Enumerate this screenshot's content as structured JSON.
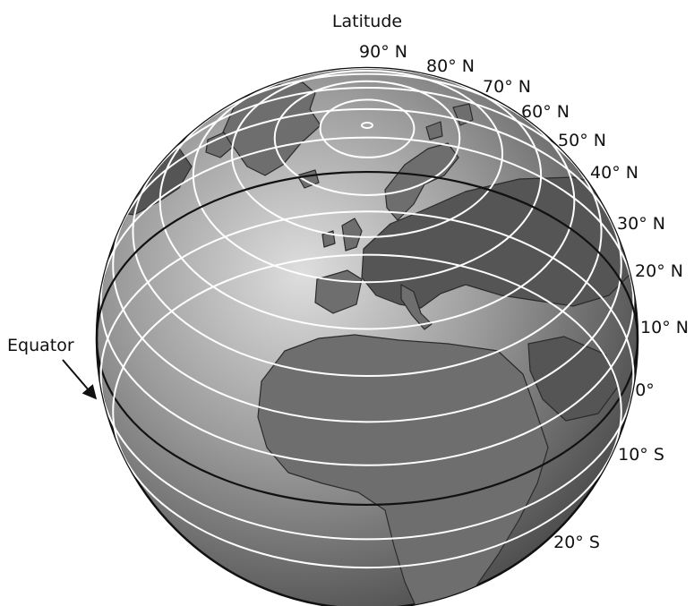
{
  "title": "Latitude",
  "equator_label": "Equator",
  "latitudes": [
    {
      "deg": 90,
      "label": "90° N"
    },
    {
      "deg": 80,
      "label": "80° N"
    },
    {
      "deg": 70,
      "label": "70° N"
    },
    {
      "deg": 60,
      "label": "60° N"
    },
    {
      "deg": 50,
      "label": "50° N"
    },
    {
      "deg": 40,
      "label": "40° N"
    },
    {
      "deg": 30,
      "label": "30° N"
    },
    {
      "deg": 20,
      "label": "20° N"
    },
    {
      "deg": 10,
      "label": "10° N"
    },
    {
      "deg": 0,
      "label": "0°"
    },
    {
      "deg": -10,
      "label": "10° S"
    },
    {
      "deg": -20,
      "label": "20° S"
    }
  ],
  "colors": {
    "globe_highlight": "#dcdcdc",
    "globe_shadow": "#3a3a3a",
    "latitude_line": "#ffffff",
    "equator_line": "#111111"
  }
}
